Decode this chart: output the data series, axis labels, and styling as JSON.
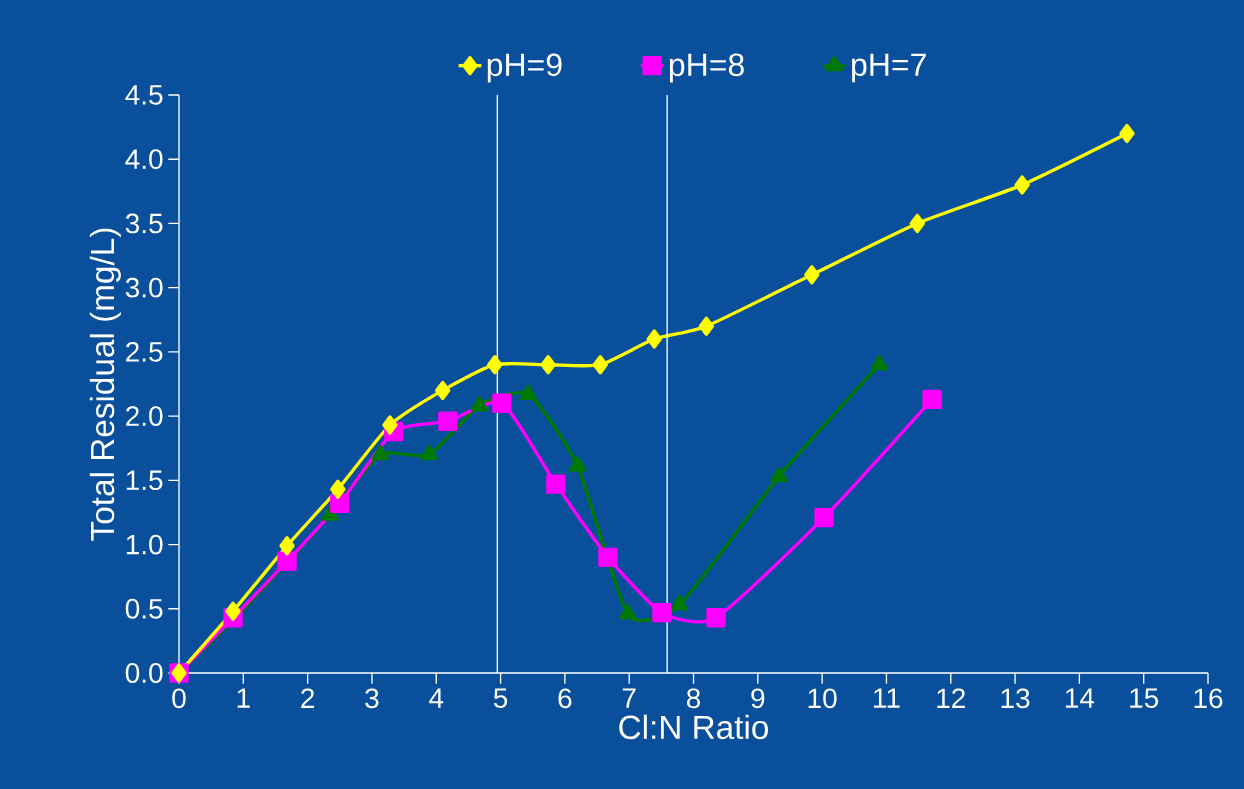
{
  "chart_data": {
    "type": "line",
    "xlabel": "Cl:N Ratio",
    "ylabel": "Total Residual (mg/L)",
    "xlim": [
      0,
      16
    ],
    "xticks": [
      0,
      1,
      2,
      3,
      4,
      5,
      6,
      7,
      8,
      9,
      10,
      11,
      12,
      13,
      14,
      15,
      16
    ],
    "ylim": [
      0,
      4.5
    ],
    "yticks": [
      {
        "value": 0,
        "label": "0.0"
      },
      0.5,
      {
        "value": 1,
        "label": "1.0"
      },
      1.5,
      {
        "value": 2,
        "label": "2.0"
      },
      2.5,
      {
        "value": 3,
        "label": "3.0"
      },
      3.5,
      {
        "value": 4,
        "label": "4.0"
      },
      4.5
    ],
    "grid": false,
    "legend": "top",
    "line_style": "solid",
    "ref_lines": [
      {
        "axis": "x",
        "value": 4.95,
        "color": "#ffffff"
      },
      {
        "axis": "x",
        "value": 7.59,
        "color": "#ffffff"
      }
    ],
    "series": [
      {
        "name": "pH=9",
        "color": "#ffff00",
        "marker": "diamond",
        "x": [
          0,
          0.84,
          1.68,
          2.47,
          3.28,
          4.1,
          4.91,
          5.74,
          6.55,
          7.39,
          8.2,
          9.84,
          11.48,
          13.11,
          14.74
        ],
        "values": [
          0,
          0.48,
          0.99,
          1.43,
          1.93,
          2.2,
          2.4,
          2.4,
          2.4,
          2.6,
          2.7,
          3.1,
          3.5,
          3.8,
          4.2
        ]
      },
      {
        "name": "pH=8",
        "color": "#ff00ff",
        "marker": "square",
        "x": [
          0,
          0.84,
          1.68,
          2.5,
          3.34,
          4.18,
          5.02,
          5.86,
          6.67,
          7.51,
          8.35,
          10.03,
          11.71
        ],
        "values": [
          0,
          0.43,
          0.87,
          1.32,
          1.88,
          1.96,
          2.1,
          1.47,
          0.9,
          0.47,
          0.43,
          1.21,
          2.13
        ]
      },
      {
        "name": "pH=7",
        "color": "#007a00",
        "marker": "triangle",
        "x": [
          0,
          0.84,
          1.68,
          2.35,
          3.13,
          3.89,
          4.67,
          5.43,
          6.2,
          6.98,
          7.78,
          9.33,
          10.89
        ],
        "values": [
          0,
          0.41,
          0.86,
          1.23,
          1.7,
          1.7,
          2.08,
          2.17,
          1.61,
          0.46,
          0.53,
          1.53,
          2.4
        ]
      }
    ]
  }
}
